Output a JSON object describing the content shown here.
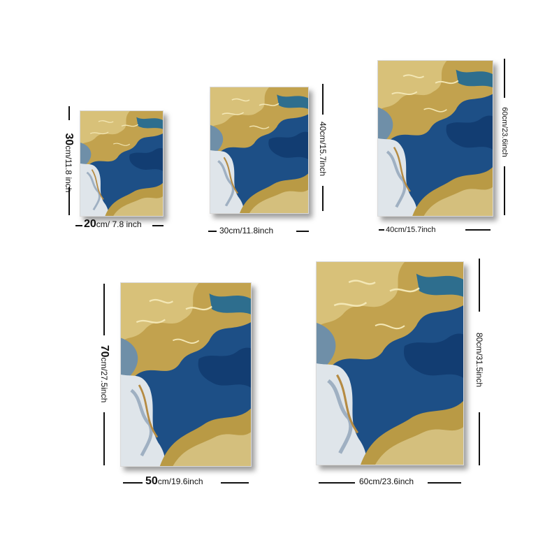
{
  "sizes": [
    {
      "width_num": "20",
      "width_rest": "cm/ 7.8 inch",
      "height_num": "30",
      "height_rest": "cm/11.8 inch"
    },
    {
      "width_text": "30cm/11.8inch",
      "height_text": "40cm/15.7inch"
    },
    {
      "width_text": "40cm/15.7inch",
      "height_text": "60cm/23.6inch"
    },
    {
      "width_num": "50",
      "width_rest": "cm/19.6inch",
      "height_num": "70",
      "height_rest": "cm/27.5inch"
    },
    {
      "width_text": "60cm/23.6inch",
      "height_text": "80cm/31.5inch"
    }
  ],
  "colors": {
    "blue": "#1a4f8c",
    "gold": "#c9a64a",
    "white": "#eef1f4",
    "shadow": "#000000"
  }
}
